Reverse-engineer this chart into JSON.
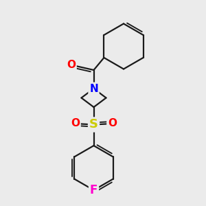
{
  "background_color": "#ebebeb",
  "bond_color": "#1a1a1a",
  "bond_width": 1.6,
  "atom_colors": {
    "O": "#ff0000",
    "N": "#0000ff",
    "S": "#cccc00",
    "F": "#ff00cc",
    "C": "#1a1a1a"
  },
  "figsize": [
    3.0,
    3.0
  ],
  "dpi": 100,
  "xlim": [
    0,
    10
  ],
  "ylim": [
    0,
    10
  ]
}
